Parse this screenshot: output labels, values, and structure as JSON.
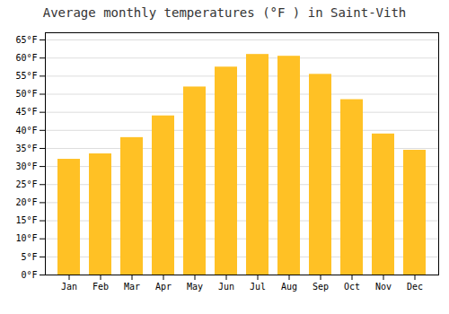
{
  "chart_data": {
    "type": "bar",
    "title": "Average monthly temperatures (°F ) in Saint-Vith",
    "categories": [
      "Jan",
      "Feb",
      "Mar",
      "Apr",
      "May",
      "Jun",
      "Jul",
      "Aug",
      "Sep",
      "Oct",
      "Nov",
      "Dec"
    ],
    "values": [
      32,
      33.5,
      38,
      44,
      52,
      57.5,
      61,
      60.5,
      55.5,
      48.5,
      39,
      34.5
    ],
    "color": "#FFC125",
    "ylim": [
      0,
      67
    ],
    "yticks": [
      {
        "value": 0,
        "label": "0°F"
      },
      {
        "value": 5,
        "label": "5°F"
      },
      {
        "value": 10,
        "label": "10°F"
      },
      {
        "value": 15,
        "label": "15°F"
      },
      {
        "value": 20,
        "label": "20°F"
      },
      {
        "value": 25,
        "label": "25°F"
      },
      {
        "value": 30,
        "label": "30°F"
      },
      {
        "value": 35,
        "label": "35°F"
      },
      {
        "value": 40,
        "label": "40°F"
      },
      {
        "value": 45,
        "label": "45°F"
      },
      {
        "value": 50,
        "label": "50°F"
      },
      {
        "value": 55,
        "label": "55°F"
      },
      {
        "value": 60,
        "label": "60°F"
      },
      {
        "value": 65,
        "label": "65°F"
      }
    ],
    "grid": true
  }
}
